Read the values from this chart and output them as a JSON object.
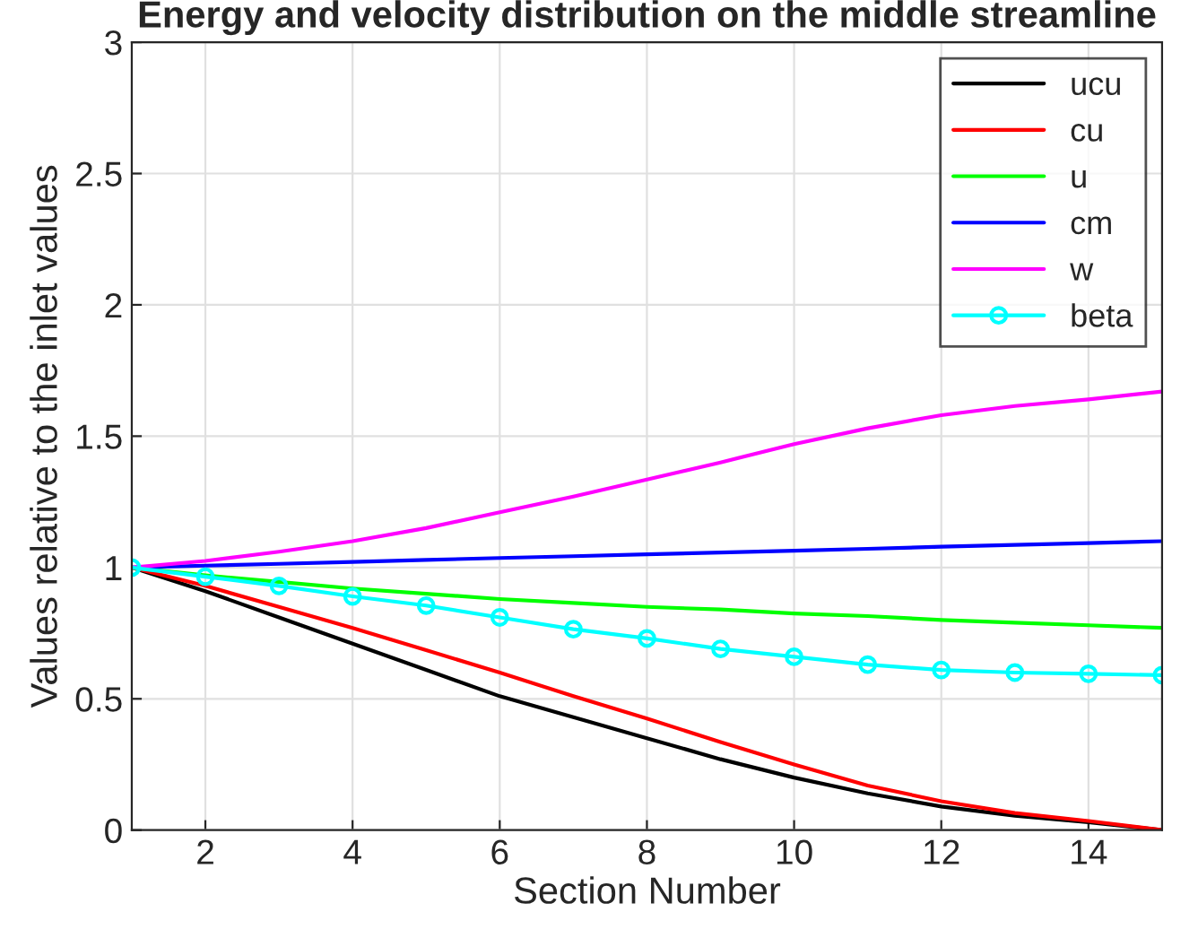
{
  "chart_data": {
    "type": "line",
    "title": "Energy and velocity distribution on the middle streamline",
    "xlabel": "Section Number",
    "ylabel": "Values relative to the inlet values",
    "x": [
      1,
      2,
      3,
      4,
      5,
      6,
      7,
      8,
      9,
      10,
      11,
      12,
      13,
      14,
      15
    ],
    "series": [
      {
        "name": "ucu",
        "color": "#000000",
        "values": [
          1,
          0.91,
          0.81,
          0.71,
          0.61,
          0.51,
          0.43,
          0.35,
          0.27,
          0.2,
          0.14,
          0.09,
          0.055,
          0.03,
          0
        ]
      },
      {
        "name": "cu",
        "color": "#ff0000",
        "values": [
          1,
          0.93,
          0.85,
          0.77,
          0.685,
          0.6,
          0.51,
          0.425,
          0.335,
          0.25,
          0.17,
          0.11,
          0.065,
          0.035,
          0
        ]
      },
      {
        "name": "u",
        "color": "#00ff00",
        "values": [
          1,
          0.97,
          0.945,
          0.92,
          0.9,
          0.88,
          0.865,
          0.85,
          0.84,
          0.825,
          0.815,
          0.8,
          0.79,
          0.78,
          0.77
        ]
      },
      {
        "name": "cm",
        "color": "#0000ff",
        "values": [
          1,
          1.007,
          1.014,
          1.021,
          1.029,
          1.036,
          1.043,
          1.05,
          1.057,
          1.064,
          1.071,
          1.079,
          1.086,
          1.093,
          1.1
        ]
      },
      {
        "name": "w",
        "color": "#ff00ff",
        "values": [
          1,
          1.025,
          1.06,
          1.1,
          1.15,
          1.21,
          1.27,
          1.335,
          1.4,
          1.47,
          1.53,
          1.58,
          1.615,
          1.64,
          1.67
        ]
      },
      {
        "name": "beta",
        "color": "#00ffff",
        "marker": "circle",
        "values": [
          1,
          0.965,
          0.93,
          0.89,
          0.855,
          0.81,
          0.765,
          0.73,
          0.69,
          0.66,
          0.63,
          0.61,
          0.6,
          0.595,
          0.59
        ]
      }
    ],
    "xlim": [
      1,
      15
    ],
    "xticks": [
      2,
      4,
      6,
      8,
      10,
      12,
      14
    ],
    "ylim": [
      0,
      3
    ],
    "yticks": [
      0,
      0.5,
      1,
      1.5,
      2,
      2.5,
      3
    ],
    "grid": true,
    "legend": "top right"
  }
}
